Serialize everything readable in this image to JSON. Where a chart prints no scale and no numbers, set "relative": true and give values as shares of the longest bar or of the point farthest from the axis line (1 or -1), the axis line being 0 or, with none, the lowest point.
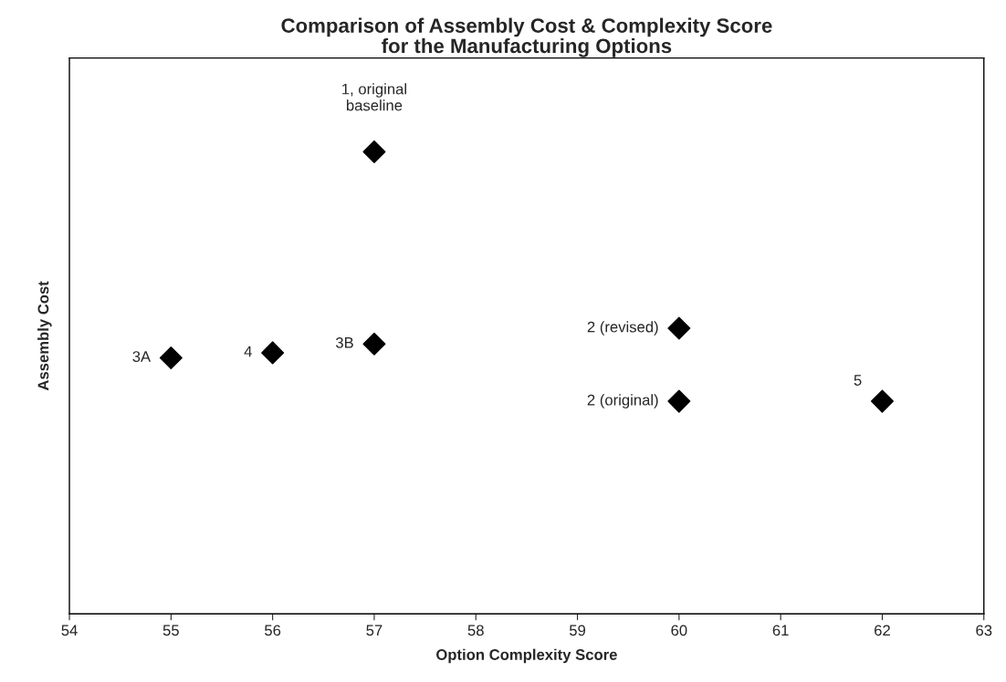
{
  "chart_data": {
    "type": "scatter",
    "title": "Comparison of Assembly Cost & Complexity Score\nfor the Manufacturing Options",
    "xlabel": "Option Complexity Score",
    "ylabel": "Assembly Cost",
    "relative": true,
    "x": [
      57,
      55,
      56,
      57,
      60,
      60,
      62
    ],
    "series": [
      {
        "color": "#000000",
        "values": [
          1.0,
          0.554,
          0.565,
          0.584,
          0.618,
          0.46,
          0.46
        ]
      }
    ],
    "xlim": [
      54,
      63
    ],
    "xticks": [
      54,
      55,
      56,
      57,
      58,
      59,
      60,
      61,
      62,
      63
    ],
    "marker": "diamond",
    "grid": false,
    "legend": false,
    "annotations": [
      {
        "text": "1, original\nbaseline",
        "x": 57,
        "y": 1.0
      },
      {
        "text": "3A",
        "x": 55,
        "y": 0.554
      },
      {
        "text": "4",
        "x": 56,
        "y": 0.565
      },
      {
        "text": "3B",
        "x": 57,
        "y": 0.584
      },
      {
        "text": "2 (revised)",
        "x": 60,
        "y": 0.618
      },
      {
        "text": "2 (original)",
        "x": 60,
        "y": 0.46
      },
      {
        "text": "5",
        "x": 62,
        "y": 0.46
      }
    ]
  }
}
